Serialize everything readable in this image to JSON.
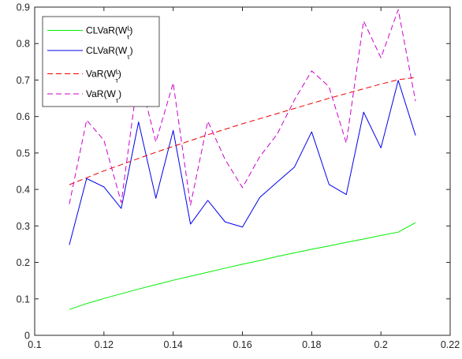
{
  "chart_data": {
    "type": "line",
    "title": "",
    "xlabel": "",
    "ylabel": "",
    "xlim": [
      0.1,
      0.22
    ],
    "ylim": [
      0,
      0.9
    ],
    "xticks": [
      "0.1",
      "0.12",
      "0.14",
      "0.16",
      "0.18",
      "0.2",
      "0.22"
    ],
    "yticks": [
      "0",
      "0.1",
      "0.2",
      "0.3",
      "0.4",
      "0.5",
      "0.6",
      "0.7",
      "0.8",
      "0.9"
    ],
    "grid": false,
    "legend_position": "top-left",
    "series": [
      {
        "key": "clvar_l",
        "legend": {
          "base": "CLVaR(W",
          "sup": "L",
          "sub": "τ",
          "close": ")"
        },
        "color": "#00ee00",
        "dash": "solid",
        "x": [
          0.11,
          0.115,
          0.12,
          0.125,
          0.13,
          0.135,
          0.14,
          0.145,
          0.15,
          0.155,
          0.16,
          0.165,
          0.17,
          0.175,
          0.18,
          0.185,
          0.19,
          0.195,
          0.2,
          0.205,
          0.21
        ],
        "y": [
          0.071,
          0.087,
          0.101,
          0.114,
          0.127,
          0.139,
          0.151,
          0.162,
          0.173,
          0.184,
          0.195,
          0.205,
          0.216,
          0.226,
          0.236,
          0.245,
          0.255,
          0.264,
          0.274,
          0.283,
          0.309
        ]
      },
      {
        "key": "clvar",
        "legend": {
          "base": "CLVaR(W",
          "sup": "",
          "sub": "τ",
          "close": ")"
        },
        "color": "#0000ee",
        "dash": "solid",
        "x": [
          0.11,
          0.115,
          0.12,
          0.125,
          0.13,
          0.135,
          0.14,
          0.145,
          0.15,
          0.155,
          0.16,
          0.165,
          0.17,
          0.175,
          0.18,
          0.185,
          0.19,
          0.195,
          0.2,
          0.205,
          0.21
        ],
        "y": [
          0.248,
          0.43,
          0.407,
          0.348,
          0.585,
          0.376,
          0.562,
          0.305,
          0.37,
          0.311,
          0.297,
          0.378,
          0.42,
          0.461,
          0.558,
          0.414,
          0.386,
          0.612,
          0.514,
          0.699,
          0.548
        ]
      },
      {
        "key": "var_l",
        "legend": {
          "base": "VaR(W",
          "sup": "L",
          "sub": "τ",
          "close": ")"
        },
        "color": "#ee0000",
        "dash": "dashed",
        "x": [
          0.11,
          0.115,
          0.12,
          0.125,
          0.13,
          0.135,
          0.14,
          0.145,
          0.15,
          0.155,
          0.16,
          0.165,
          0.17,
          0.175,
          0.18,
          0.185,
          0.19,
          0.195,
          0.2,
          0.205,
          0.21
        ],
        "y": [
          0.413,
          0.432,
          0.451,
          0.468,
          0.485,
          0.502,
          0.518,
          0.534,
          0.55,
          0.565,
          0.58,
          0.594,
          0.608,
          0.622,
          0.636,
          0.65,
          0.663,
          0.676,
          0.689,
          0.701,
          0.707
        ]
      },
      {
        "key": "var",
        "legend": {
          "base": "VaR(W",
          "sup": "",
          "sub": "τ",
          "close": ")"
        },
        "color": "#cc00cc",
        "dash": "dashed",
        "x": [
          0.11,
          0.115,
          0.12,
          0.125,
          0.13,
          0.135,
          0.14,
          0.145,
          0.15,
          0.155,
          0.16,
          0.165,
          0.17,
          0.175,
          0.18,
          0.185,
          0.19,
          0.195,
          0.2,
          0.205,
          0.21
        ],
        "y": [
          0.36,
          0.59,
          0.535,
          0.364,
          0.72,
          0.53,
          0.692,
          0.357,
          0.587,
          0.482,
          0.405,
          0.49,
          0.551,
          0.645,
          0.725,
          0.682,
          0.527,
          0.862,
          0.761,
          0.893,
          0.642
        ]
      }
    ]
  }
}
